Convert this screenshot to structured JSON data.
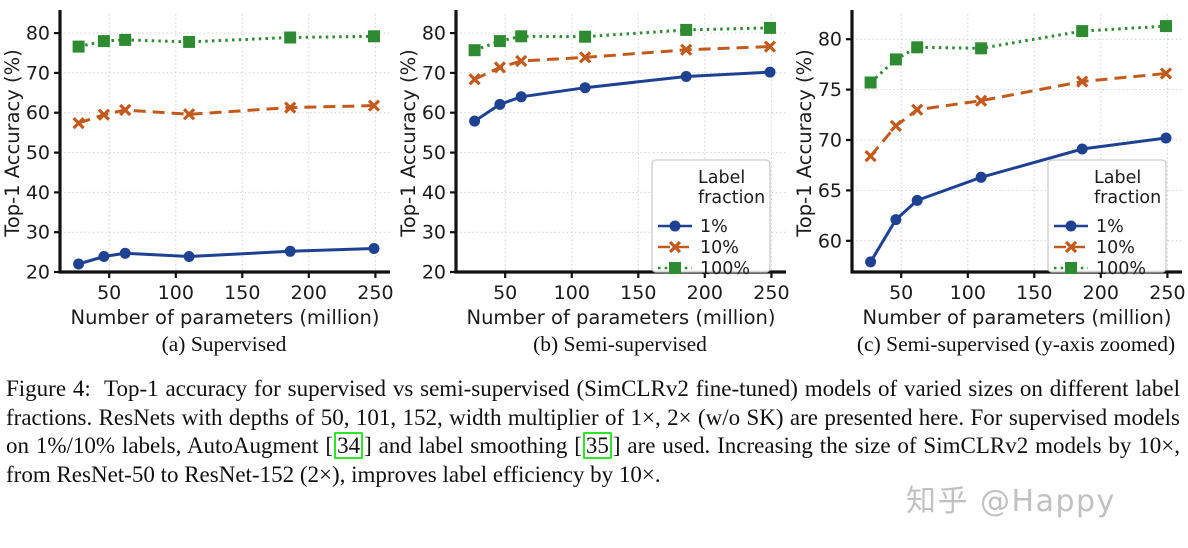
{
  "figure": {
    "subcaptions": [
      "(a) Supervised",
      "(b) Semi-supervised",
      "(c) Semi-supervised (y-axis zoomed)"
    ],
    "caption_parts": [
      {
        "text": "Figure 4:  Top-1 accuracy for supervised vs semi-supervised (SimCLRv2 fine-tuned) models of varied sizes on different label fractions. ResNets with depths of 50, 101, 152, width multiplier of 1×, 2× (w/o SK) are presented here. For supervised models on 1%/10% labels, AutoAugment ["
      },
      {
        "cite": "34"
      },
      {
        "text": "] and label smoothing ["
      },
      {
        "cite": "35"
      },
      {
        "text": "] are used. Increasing the size of SimCLRv2 models by 10×, from ResNet-50 to ResNet-152 (2×), improves label efficiency by 10×."
      }
    ],
    "watermark": "知乎 @Happy",
    "citation_box_color": "#2ee62e"
  },
  "colors": {
    "blue": "#1e4191",
    "orange": "#c25a1e",
    "green": "#2e8b31",
    "grid": "#d0d0d0",
    "spine": "#111111"
  },
  "chart_data": [
    {
      "type": "line",
      "panel": "a",
      "title": "(a) Supervised",
      "xlabel": "Number of parameters (million)",
      "ylabel": "Top-1 Accuracy (%)",
      "x": [
        27,
        46,
        62,
        110,
        186,
        249
      ],
      "xticks": [
        50,
        100,
        150,
        200,
        250
      ],
      "xlim": [
        13,
        261
      ],
      "yticks": [
        20,
        30,
        40,
        50,
        60,
        70,
        80
      ],
      "ylim": [
        20,
        84.8
      ],
      "grid": true,
      "legend": null,
      "series": [
        {
          "name": "1%",
          "color": "#1e4191",
          "line": "solid",
          "marker": "circle",
          "values": [
            22.0,
            23.9,
            24.7,
            23.9,
            25.2,
            25.9
          ]
        },
        {
          "name": "10%",
          "color": "#c25a1e",
          "line": "dashed",
          "marker": "x",
          "values": [
            57.4,
            59.5,
            60.7,
            59.6,
            61.3,
            61.8
          ]
        },
        {
          "name": "100%",
          "color": "#2e8b31",
          "line": "dotted",
          "marker": "square",
          "values": [
            76.6,
            78.0,
            78.3,
            77.8,
            78.9,
            79.2
          ]
        }
      ]
    },
    {
      "type": "line",
      "panel": "b",
      "title": "(b) Semi-supervised",
      "xlabel": "Number of parameters (million)",
      "ylabel": "Top-1 Accuracy (%)",
      "x": [
        27,
        46,
        62,
        110,
        186,
        249
      ],
      "xticks": [
        50,
        100,
        150,
        200,
        250
      ],
      "xlim": [
        13,
        261
      ],
      "yticks": [
        20,
        30,
        40,
        50,
        60,
        70,
        80
      ],
      "ylim": [
        20,
        84.8
      ],
      "grid": true,
      "legend": {
        "title_lines": [
          "Label",
          "fraction"
        ],
        "position": "lower right"
      },
      "series": [
        {
          "name": "1%",
          "color": "#1e4191",
          "line": "solid",
          "marker": "circle",
          "values": [
            57.9,
            62.1,
            64.0,
            66.3,
            69.1,
            70.2
          ]
        },
        {
          "name": "10%",
          "color": "#c25a1e",
          "line": "dashed",
          "marker": "x",
          "values": [
            68.4,
            71.4,
            73.0,
            73.9,
            75.8,
            76.6
          ]
        },
        {
          "name": "100%",
          "color": "#2e8b31",
          "line": "dotted",
          "marker": "square",
          "values": [
            75.7,
            78.0,
            79.2,
            79.1,
            80.8,
            81.3
          ]
        }
      ]
    },
    {
      "type": "line",
      "panel": "c",
      "title": "(c) Semi-supervised (y-axis zoomed)",
      "xlabel": "Number of parameters (million)",
      "ylabel": "Top-1 Accuracy (%)",
      "x": [
        27,
        46,
        62,
        110,
        186,
        249
      ],
      "xticks": [
        50,
        100,
        150,
        200,
        250
      ],
      "xlim": [
        13,
        261
      ],
      "yticks": [
        60,
        65,
        70,
        75,
        80
      ],
      "ylim": [
        56.9,
        82.5
      ],
      "grid": true,
      "legend": {
        "title_lines": [
          "Label",
          "fraction"
        ],
        "position": "lower right"
      },
      "series": [
        {
          "name": "1%",
          "color": "#1e4191",
          "line": "solid",
          "marker": "circle",
          "values": [
            57.9,
            62.1,
            64.0,
            66.3,
            69.1,
            70.2
          ]
        },
        {
          "name": "10%",
          "color": "#c25a1e",
          "line": "dashed",
          "marker": "x",
          "values": [
            68.4,
            71.4,
            73.0,
            73.9,
            75.8,
            76.6
          ]
        },
        {
          "name": "100%",
          "color": "#2e8b31",
          "line": "dotted",
          "marker": "square",
          "values": [
            75.7,
            78.0,
            79.2,
            79.1,
            80.8,
            81.3
          ]
        }
      ]
    }
  ]
}
